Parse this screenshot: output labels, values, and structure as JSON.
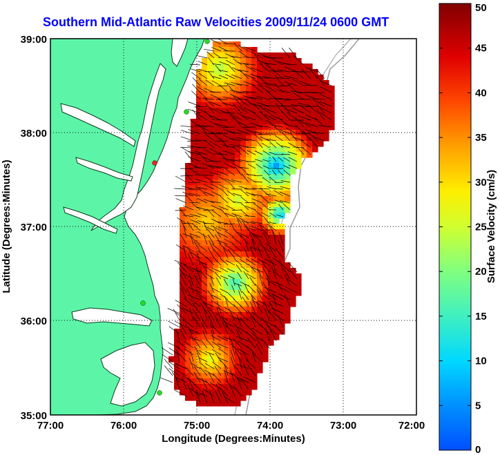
{
  "title": "Southern Mid-Atlantic Raw Velocities 2009/11/24 0600 GMT",
  "x_axis": {
    "label": "Longitude (Degrees:Minutes)",
    "ticks": [
      "77:00",
      "76:00",
      "75:00",
      "74:00",
      "73:00",
      "72:00"
    ]
  },
  "y_axis": {
    "label": "Latitude (Degrees:Minutes)",
    "ticks": [
      "39:00",
      "38:00",
      "37:00",
      "36:00",
      "35:00"
    ]
  },
  "colorbar": {
    "label": "Surface Velocity (cm/s)",
    "ticks": [
      "50",
      "45",
      "40",
      "35",
      "30",
      "25",
      "20",
      "15",
      "10",
      "5",
      "0"
    ],
    "min": 0,
    "max": 50
  },
  "colors": {
    "land": "#5cf5a8",
    "water": "#ffffff",
    "title": "#0000ff",
    "station": "#22dd22",
    "station_alt": "#ee2222"
  },
  "map_extent": {
    "lon_min": -77,
    "lon_max": -72,
    "lat_min": 35,
    "lat_max": 39
  },
  "gridlines": true
}
